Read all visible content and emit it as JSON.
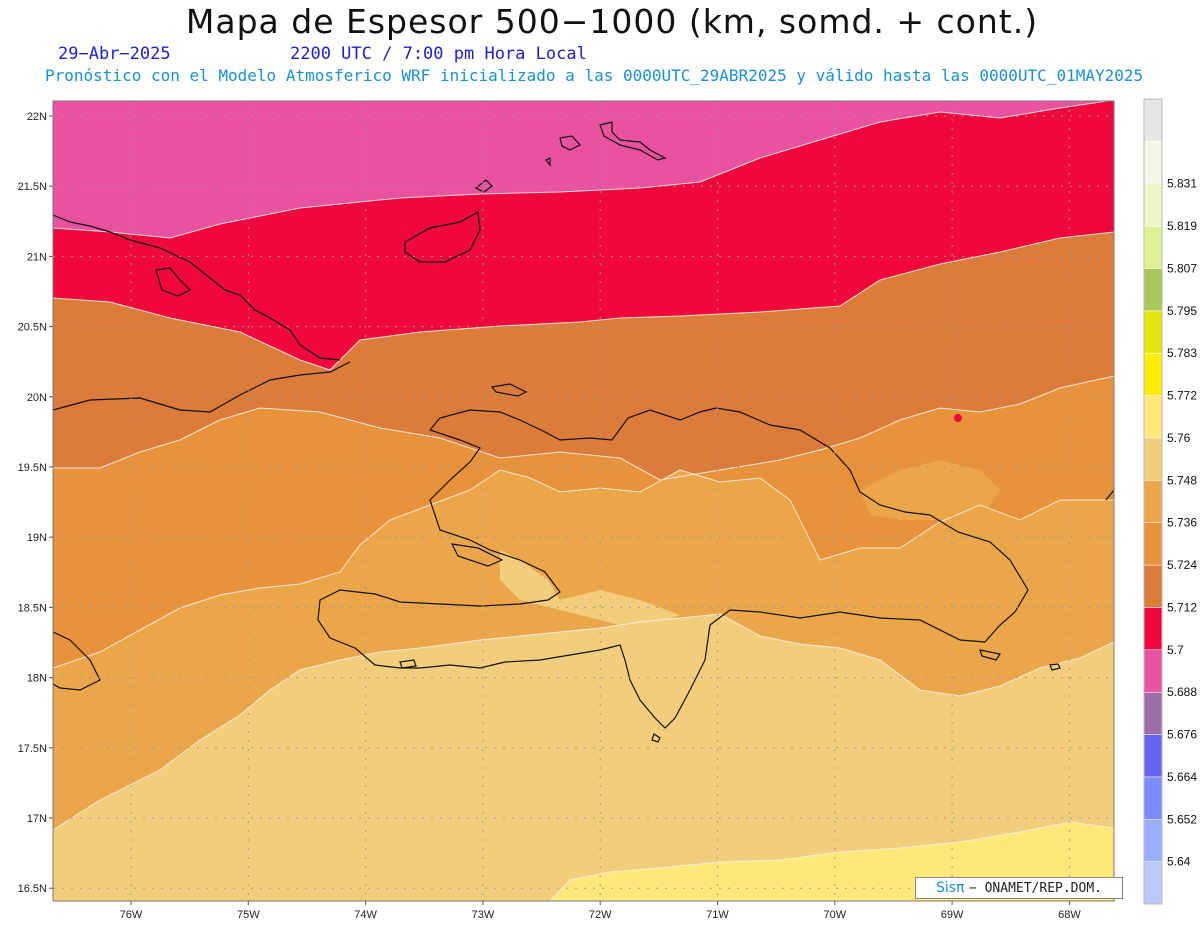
{
  "header": {
    "title": "Mapa de Espesor 500−1000 (km, somd. + cont.)",
    "date": "29−Abr−2025",
    "valid_time": "2200 UTC / 7:00 pm Hora Local",
    "model_line": "Pronóstico con el Modelo Atmosferico WRF inicializado a las 0000UTC_29ABR2025 y válido hasta las  0000UTC_01MAY2025"
  },
  "map": {
    "lat_labels": [
      "22N",
      "21.5N",
      "21N",
      "20.5N",
      "20N",
      "19.5N",
      "19N",
      "18.5N",
      "18N",
      "17.5N",
      "17N",
      "16.5N"
    ],
    "lon_labels": [
      "76W",
      "75W",
      "74W",
      "73W",
      "72W",
      "71W",
      "70W",
      "69W",
      "68W"
    ],
    "bands": [
      {
        "level": "5.688-5.7",
        "color": "#e8529f"
      },
      {
        "level": "5.7-5.712",
        "color": "#f0083c"
      },
      {
        "level": "5.712-5.724",
        "color": "#dc7c3a"
      },
      {
        "level": "5.724-5.736",
        "color": "#e8923c"
      },
      {
        "level": "5.736-5.748",
        "color": "#eba64a"
      },
      {
        "level": "5.748-5.76",
        "color": "#f2ce7c"
      },
      {
        "level": "5.76-5.772",
        "color": "#ffe87a"
      }
    ]
  },
  "legend": {
    "colors": [
      "#bdc8ff",
      "#9aaeff",
      "#7c8cff",
      "#6464f0",
      "#9b6eaa",
      "#e8529f",
      "#f0083c",
      "#dc7c3a",
      "#e8923c",
      "#eba64a",
      "#f2ce7c",
      "#ffe87a",
      "#ffee00",
      "#e4e60e",
      "#a8c858",
      "#def094",
      "#eef6c8",
      "#f5f5e8",
      "#e6e6e6"
    ],
    "labels": [
      "5.64",
      "5.652",
      "5.664",
      "5.676",
      "5.688",
      "5.7",
      "5.712",
      "5.724",
      "5.736",
      "5.748",
      "5.76",
      "5.772",
      "5.783",
      "5.795",
      "5.807",
      "5.819",
      "5.831"
    ]
  },
  "credit": {
    "sis": "Sisπ",
    "org": "− ONAMET/REP.DOM."
  }
}
